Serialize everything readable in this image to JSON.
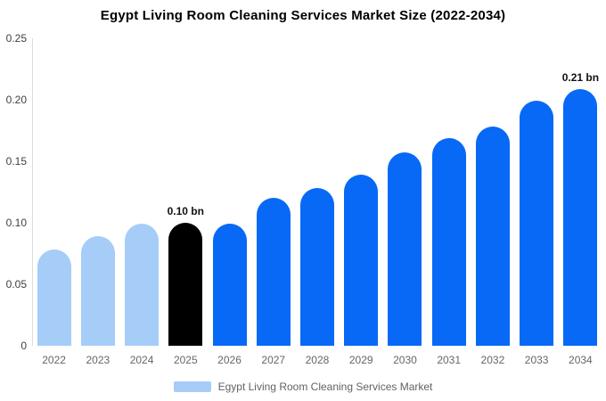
{
  "title": "Egypt Living Room Cleaning Services Market Size (2022-2034)",
  "colors": {
    "historical_bar": "#a6ccf8",
    "current_year_bar": "#000000",
    "forecast_bar": "#0769f6",
    "axis_line": "#dcdcdc",
    "y_label": "#404040",
    "x_label": "#666666",
    "legend_text": "#5f6368"
  },
  "legend": {
    "label": "Egypt Living Room Cleaning Services Market",
    "swatch_color": "#a6ccf8"
  },
  "chart_data": {
    "type": "bar",
    "title": "Egypt Living Room Cleaning Services Market Size (2022-2034)",
    "xlabel": "",
    "ylabel": "",
    "unit": "bn",
    "ylim": [
      0,
      0.25
    ],
    "grid": false,
    "legend_position": "bottom",
    "categories": [
      "2022",
      "2023",
      "2024",
      "2025",
      "2026",
      "2027",
      "2028",
      "2029",
      "2030",
      "2031",
      "2032",
      "2033",
      "2034"
    ],
    "values": [
      0.078,
      0.089,
      0.099,
      0.1,
      0.099,
      0.12,
      0.128,
      0.139,
      0.157,
      0.169,
      0.178,
      0.199,
      0.209
    ],
    "bar_colors": [
      "#a6ccf8",
      "#a6ccf8",
      "#a6ccf8",
      "#000000",
      "#0769f6",
      "#0769f6",
      "#0769f6",
      "#0769f6",
      "#0769f6",
      "#0769f6",
      "#0769f6",
      "#0769f6",
      "#0769f6"
    ],
    "y_ticks": [
      {
        "label": "0",
        "value": 0
      },
      {
        "label": "0.05",
        "value": 0.05
      },
      {
        "label": "0.10",
        "value": 0.1
      },
      {
        "label": "0.15",
        "value": 0.15
      },
      {
        "label": "0.20",
        "value": 0.2
      },
      {
        "label": "0.25",
        "value": 0.25
      }
    ],
    "annotations": [
      {
        "category": "2025",
        "text": "0.10 bn"
      },
      {
        "category": "2034",
        "text": "0.21 bn"
      }
    ]
  }
}
